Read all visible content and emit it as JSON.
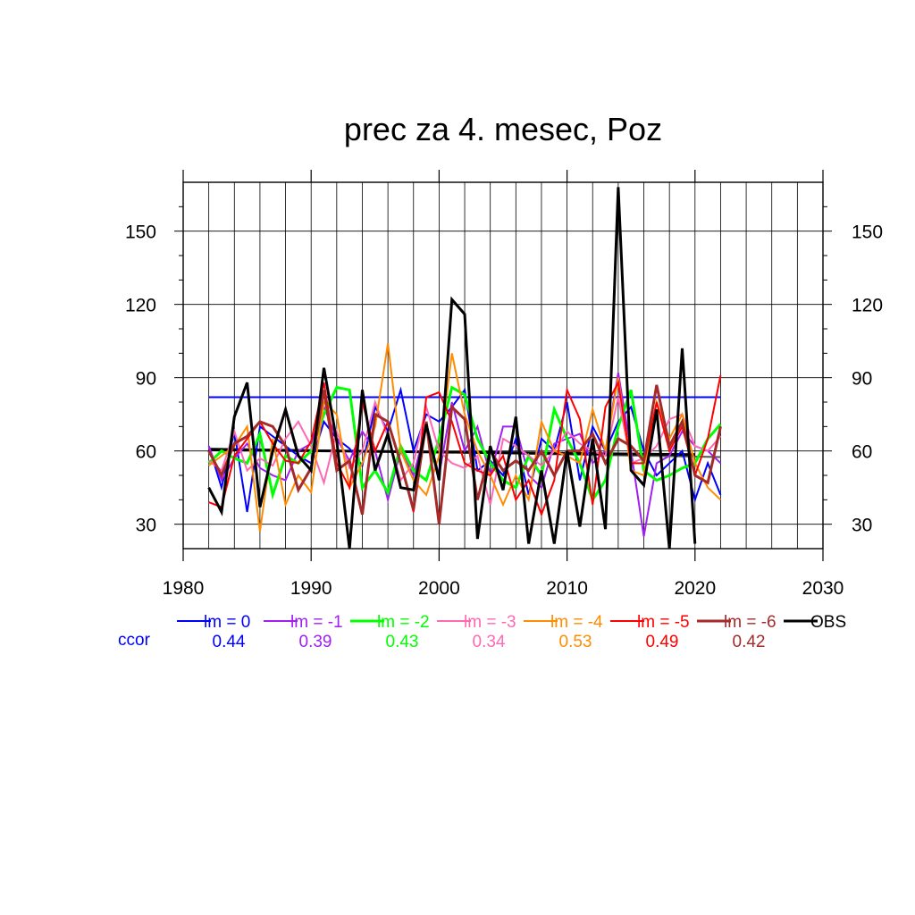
{
  "chart_data": {
    "type": "line",
    "title": "prec za 4. mesec, Poz",
    "xlabel": "",
    "ylabel": "",
    "xlim": [
      1980,
      2030
    ],
    "ylim": [
      20,
      170
    ],
    "x_ticks": [
      1980,
      1990,
      2000,
      2010,
      2020,
      2030
    ],
    "y_ticks": [
      30,
      60,
      90,
      120,
      150
    ],
    "grid": true,
    "legend_position": "bottom",
    "ccor_label": "ccor",
    "x": [
      1982,
      1983,
      1984,
      1985,
      1986,
      1987,
      1988,
      1989,
      1990,
      1991,
      1992,
      1993,
      1994,
      1995,
      1996,
      1997,
      1998,
      1999,
      2000,
      2001,
      2002,
      2003,
      2004,
      2005,
      2006,
      2007,
      2008,
      2009,
      2010,
      2011,
      2012,
      2013,
      2014,
      2015,
      2016,
      2017,
      2018,
      2019,
      2020,
      2021,
      2022
    ],
    "series": [
      {
        "name": "lm = 0",
        "ccor": "0.44",
        "color": "#0000ff",
        "width": 2,
        "values": [
          62,
          45,
          68,
          35,
          70,
          66,
          62,
          58,
          55,
          72,
          65,
          61,
          54,
          78,
          68,
          85,
          60,
          75,
          72,
          78,
          85,
          52,
          56,
          50,
          65,
          42,
          65,
          60,
          80,
          48,
          70,
          60,
          72,
          78,
          60,
          50,
          55,
          60,
          40,
          55,
          42
        ]
      },
      {
        "name": "lm = -1",
        "ccor": "0.39",
        "color": "#a020f0",
        "width": 2,
        "values": [
          62,
          48,
          57,
          63,
          53,
          50,
          48,
          60,
          63,
          78,
          65,
          56,
          68,
          60,
          40,
          60,
          50,
          70,
          50,
          80,
          60,
          70,
          50,
          70,
          70,
          50,
          45,
          63,
          65,
          67,
          55,
          60,
          92,
          60,
          25,
          55,
          58,
          68,
          62,
          60,
          55
        ]
      },
      {
        "name": "lm = -2",
        "ccor": "0.43",
        "color": "#00ff00",
        "width": 3,
        "values": [
          55,
          60,
          57,
          55,
          67,
          42,
          58,
          55,
          60,
          75,
          86,
          85,
          45,
          52,
          43,
          62,
          52,
          48,
          65,
          86,
          83,
          65,
          55,
          48,
          45,
          58,
          50,
          77,
          65,
          55,
          40,
          48,
          70,
          85,
          52,
          48,
          50,
          53,
          55,
          65,
          71
        ]
      },
      {
        "name": "lm = -3",
        "ccor": "0.34",
        "color": "#ff69b4",
        "width": 2,
        "values": [
          56,
          52,
          68,
          52,
          57,
          54,
          65,
          72,
          62,
          47,
          68,
          53,
          60,
          80,
          66,
          48,
          55,
          78,
          60,
          55,
          53,
          58,
          38,
          65,
          62,
          58,
          54,
          60,
          68,
          63,
          60,
          58,
          82,
          55,
          57,
          62,
          73,
          75,
          62,
          60,
          66
        ]
      },
      {
        "name": "lm = -4",
        "ccor": "0.53",
        "color": "#ff8c00",
        "width": 2,
        "values": [
          54,
          58,
          62,
          70,
          27,
          65,
          38,
          50,
          43,
          80,
          75,
          45,
          55,
          70,
          104,
          60,
          48,
          42,
          58,
          100,
          75,
          60,
          50,
          38,
          50,
          40,
          72,
          60,
          58,
          55,
          77,
          60,
          90,
          52,
          50,
          80,
          65,
          75,
          55,
          45,
          40
        ]
      },
      {
        "name": "lm = -5",
        "ccor": "0.49",
        "color": "#ff0000",
        "width": 2,
        "values": [
          39,
          37,
          58,
          65,
          72,
          63,
          56,
          55,
          64,
          88,
          55,
          45,
          80,
          60,
          72,
          55,
          35,
          82,
          84,
          72,
          55,
          52,
          50,
          58,
          40,
          48,
          34,
          48,
          85,
          73,
          38,
          78,
          88,
          55,
          55,
          80,
          60,
          70,
          50,
          65,
          91
        ]
      },
      {
        "name": "lm = -6",
        "ccor": "0.42",
        "color": "#a52a2a",
        "width": 3,
        "values": [
          60,
          50,
          63,
          66,
          72,
          70,
          62,
          44,
          53,
          85,
          52,
          56,
          34,
          75,
          72,
          55,
          36,
          72,
          30,
          78,
          73,
          40,
          60,
          52,
          56,
          52,
          60,
          50,
          60,
          60,
          67,
          55,
          65,
          62,
          56,
          87,
          62,
          72,
          50,
          47,
          70
        ]
      }
    ],
    "obs": {
      "name": "OBS",
      "color": "#000000",
      "width": 3,
      "x": [
        1982,
        1983,
        1984,
        1985,
        1986,
        1987,
        1988,
        1989,
        1990,
        1991,
        1992,
        1993,
        1994,
        1995,
        1996,
        1997,
        1998,
        1999,
        2000,
        2001,
        2002,
        2003,
        2004,
        2005,
        2006,
        2007,
        2008,
        2009,
        2010,
        2011,
        2012,
        2013,
        2014,
        2015,
        2016,
        2017,
        2018,
        2019,
        2020
      ],
      "values": [
        45,
        35,
        74,
        88,
        37,
        60,
        77,
        58,
        52,
        94,
        64,
        20,
        85,
        52,
        67,
        45,
        44,
        71,
        48,
        122,
        116,
        24,
        62,
        44,
        74,
        22,
        52,
        22,
        60,
        29,
        65,
        28,
        168,
        52,
        46,
        77,
        20,
        102,
        22
      ]
    },
    "trend_lines": [
      {
        "color": "#0000ff",
        "width": 2,
        "x": [
          1982,
          2022
        ],
        "y": [
          82,
          82
        ]
      },
      {
        "color": "#555555",
        "width": 2,
        "x": [
          1982,
          2022
        ],
        "y": [
          61,
          57.5
        ]
      },
      {
        "color": "#000000",
        "width": 3,
        "x": [
          1982,
          2020
        ],
        "y": [
          60.5,
          58.5
        ]
      }
    ]
  }
}
